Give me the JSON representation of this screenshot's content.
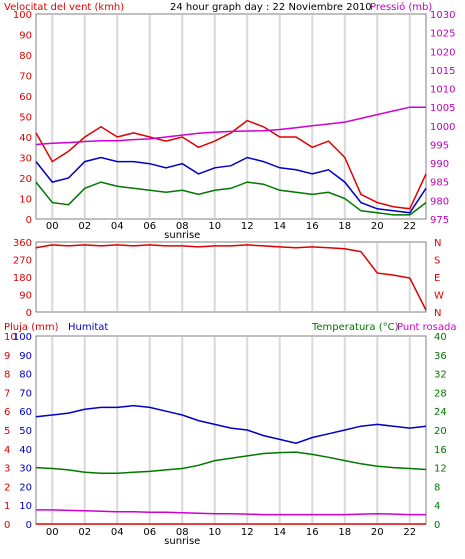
{
  "header": {
    "left": "Velocitat del vent (kmh)",
    "center": "24 hour graph day : 22 Noviembre 2010",
    "right": "Pressió (mb)"
  },
  "colors": {
    "red": "#e00000",
    "blue": "#0000c8",
    "green": "#007800",
    "magenta": "#d000d0",
    "axis_purple": "#c000c0",
    "grid": "#d8d8d8",
    "frame": "#808080"
  },
  "time_labels": [
    "00",
    "02",
    "04",
    "06",
    "08",
    "10",
    "12",
    "14",
    "16",
    "18",
    "20",
    "22"
  ],
  "sunrise_label": "sunrise",
  "chart_data": [
    {
      "type": "line",
      "name": "wind-pressure",
      "ylabel": "Velocitat del vent (kmh)",
      "y2label": "Pressió (mb)",
      "ylim": [
        0,
        100
      ],
      "y2lim": [
        975,
        1030
      ],
      "yticks": [
        0,
        10,
        20,
        30,
        40,
        50,
        60,
        70,
        80,
        90,
        100
      ],
      "y2ticks": [
        975,
        980,
        985,
        990,
        995,
        1000,
        1005,
        1010,
        1015,
        1020,
        1025,
        1030
      ],
      "x": [
        0,
        1,
        2,
        3,
        4,
        5,
        6,
        7,
        8,
        9,
        10,
        11,
        12,
        13,
        14,
        15,
        16,
        17,
        18,
        19,
        20,
        21,
        22,
        23,
        24
      ],
      "series": [
        {
          "color": "#e00000",
          "axis": "y",
          "values": [
            42,
            28,
            33,
            40,
            45,
            40,
            42,
            40,
            38,
            40,
            35,
            38,
            42,
            48,
            45,
            40,
            40,
            35,
            38,
            30,
            12,
            8,
            6,
            5,
            22
          ]
        },
        {
          "color": "#0000c8",
          "axis": "y",
          "values": [
            28,
            18,
            20,
            28,
            30,
            28,
            28,
            27,
            25,
            27,
            22,
            25,
            26,
            30,
            28,
            25,
            24,
            22,
            24,
            18,
            8,
            5,
            4,
            3,
            15
          ]
        },
        {
          "color": "#007800",
          "axis": "y",
          "values": [
            18,
            8,
            7,
            15,
            18,
            16,
            15,
            14,
            13,
            14,
            12,
            14,
            15,
            18,
            17,
            14,
            13,
            12,
            13,
            10,
            4,
            3,
            2,
            2,
            8
          ]
        },
        {
          "color": "#d000d0",
          "axis": "y2",
          "values": [
            995,
            995.3,
            995.5,
            995.8,
            996,
            996,
            996.3,
            996.5,
            997,
            997.5,
            998,
            998.3,
            998.5,
            998.6,
            998.7,
            999,
            999.5,
            1000,
            1000.5,
            1001,
            1002,
            1003,
            1004,
            1005,
            1005
          ]
        }
      ]
    },
    {
      "type": "line",
      "name": "wind-direction",
      "ylim": [
        0,
        360
      ],
      "yticks": [
        0,
        90,
        180,
        270,
        360
      ],
      "y2ticks": [
        "N",
        "S",
        "E",
        "W",
        "N"
      ],
      "x": [
        0,
        1,
        2,
        3,
        4,
        5,
        6,
        7,
        8,
        9,
        10,
        11,
        12,
        13,
        14,
        15,
        16,
        17,
        18,
        19,
        20,
        21,
        22,
        23,
        24
      ],
      "series": [
        {
          "color": "#e00000",
          "values": [
            330,
            345,
            340,
            345,
            340,
            345,
            340,
            345,
            340,
            340,
            335,
            340,
            340,
            345,
            340,
            335,
            330,
            335,
            330,
            325,
            310,
            200,
            190,
            175,
            10
          ]
        }
      ]
    },
    {
      "type": "line",
      "name": "rain-humidity-temperature",
      "title_left": "Pluja (mm)",
      "title_humidity": "Humitat",
      "title_right": "Temperatura (°C)",
      "title_dew": "Punt rosada",
      "ylim_rain": [
        0,
        10
      ],
      "yticks_rain": [
        0,
        1,
        2,
        3,
        4,
        5,
        6,
        7,
        8,
        9,
        10
      ],
      "ylim_humidity": [
        0,
        100
      ],
      "yticks_humidity": [
        0,
        10,
        20,
        30,
        40,
        50,
        60,
        70,
        80,
        90,
        100
      ],
      "ylim_temp": [
        0,
        40
      ],
      "yticks_temp": [
        0,
        4,
        8,
        12,
        16,
        20,
        24,
        28,
        32,
        36,
        40
      ],
      "x": [
        0,
        1,
        2,
        3,
        4,
        5,
        6,
        7,
        8,
        9,
        10,
        11,
        12,
        13,
        14,
        15,
        16,
        17,
        18,
        19,
        20,
        21,
        22,
        23,
        24
      ],
      "series": [
        {
          "color": "#0000c8",
          "axis": "humidity",
          "values": [
            57,
            58,
            59,
            61,
            62,
            62,
            63,
            62,
            60,
            58,
            55,
            53,
            51,
            50,
            47,
            45,
            43,
            46,
            48,
            50,
            52,
            53,
            52,
            51,
            52
          ]
        },
        {
          "color": "#007800",
          "axis": "temp",
          "values": [
            12,
            11.8,
            11.5,
            11,
            10.8,
            10.8,
            11,
            11.2,
            11.5,
            11.8,
            12.5,
            13.5,
            14,
            14.5,
            15,
            15.2,
            15.3,
            14.8,
            14.2,
            13.5,
            12.8,
            12.3,
            12,
            11.8,
            11.6
          ]
        },
        {
          "color": "#d000d0",
          "axis": "temp",
          "values": [
            3,
            3,
            2.9,
            2.8,
            2.7,
            2.6,
            2.6,
            2.5,
            2.5,
            2.4,
            2.3,
            2.2,
            2.2,
            2.1,
            2.0,
            2.0,
            2.0,
            2.0,
            2.0,
            2.0,
            2.1,
            2.2,
            2.1,
            2.0,
            2.0
          ]
        },
        {
          "color": "#e00000",
          "axis": "rain",
          "values": [
            0,
            0,
            0,
            0,
            0,
            0,
            0,
            0,
            0,
            0,
            0,
            0,
            0,
            0,
            0,
            0,
            0,
            0,
            0,
            0,
            0,
            0,
            0,
            0,
            0
          ]
        }
      ]
    }
  ]
}
